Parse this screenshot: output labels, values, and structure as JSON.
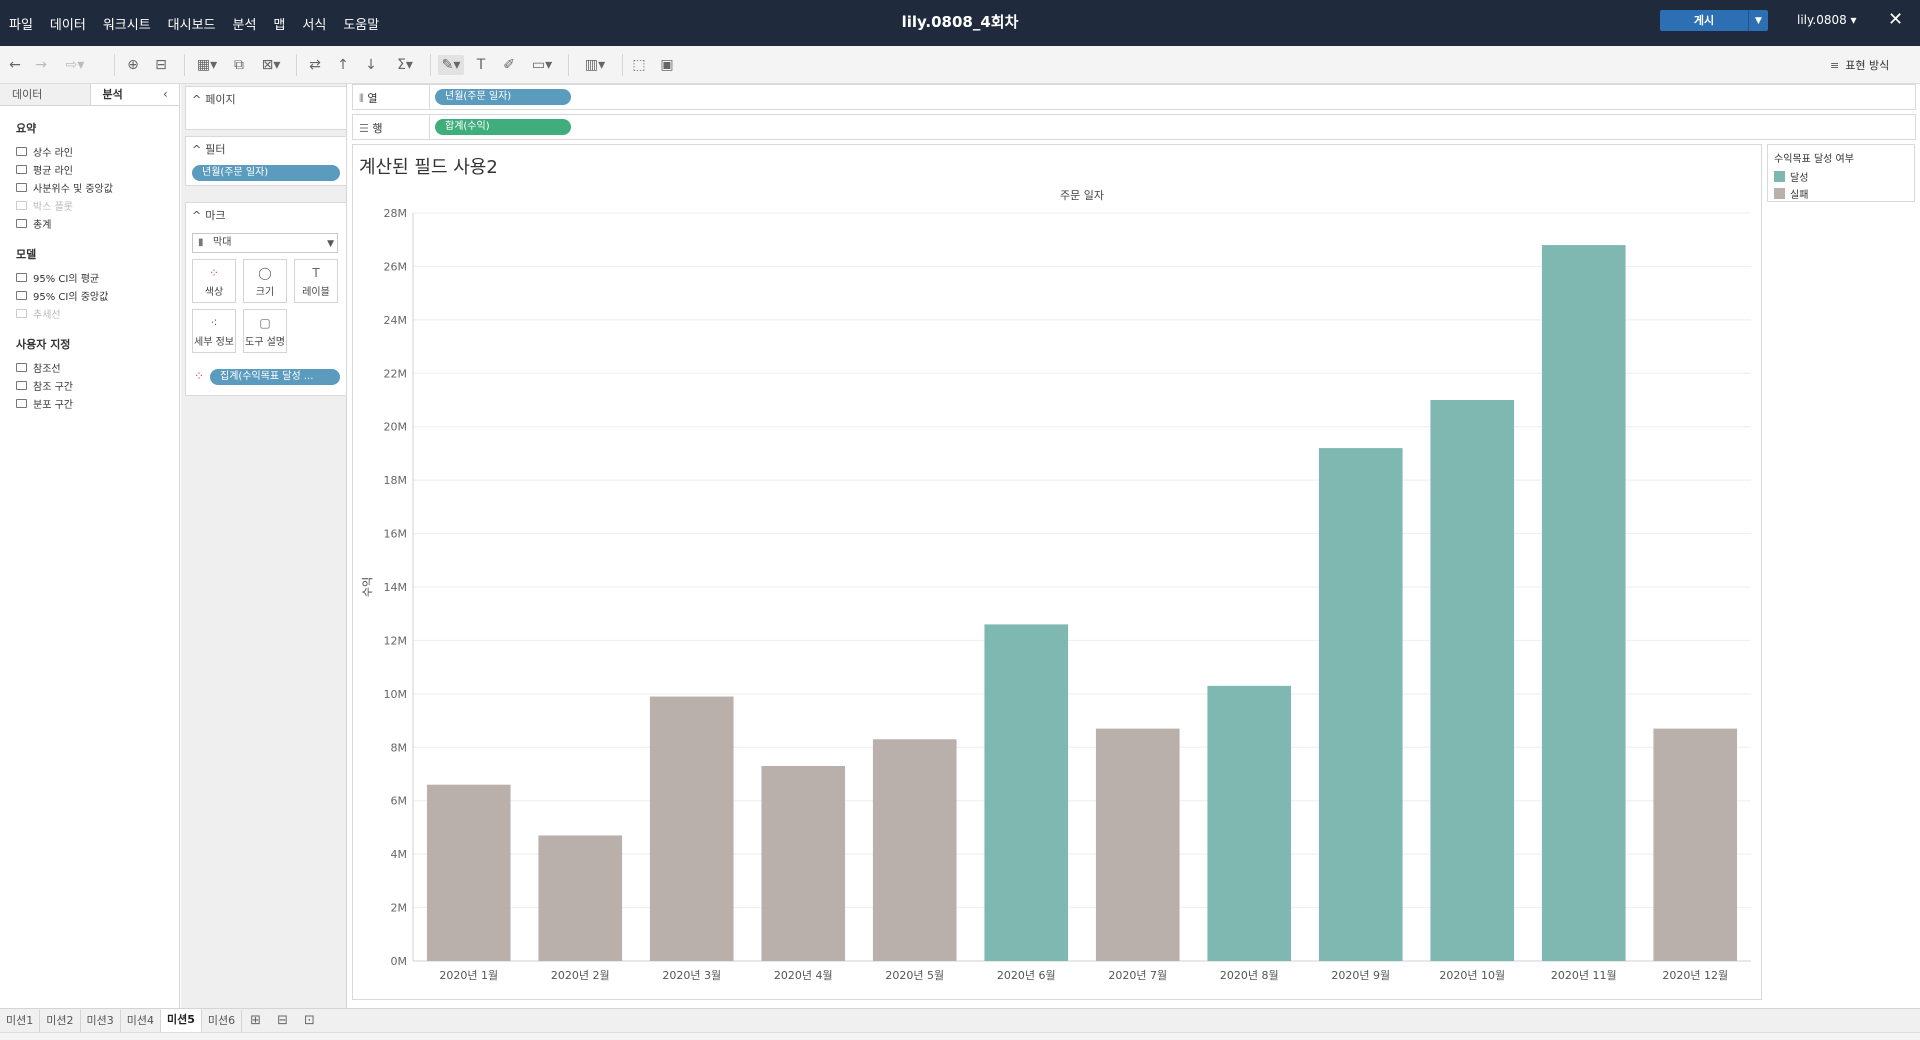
{
  "window": {
    "title": "lily.0808_4회차",
    "publish_label": "게시",
    "user_label": "lily.0808 ▾",
    "close_label": "✕"
  },
  "menu": [
    "파일",
    "데이터",
    "워크시트",
    "대시보드",
    "분석",
    "맵",
    "서식",
    "도움말"
  ],
  "toolbar": {
    "show_me_label": "표현 방식"
  },
  "left_pane": {
    "tabs": [
      "데이터",
      "분석"
    ],
    "sections": [
      {
        "title": "요약",
        "items": [
          {
            "label": "상수 라인",
            "disabled": false
          },
          {
            "label": "평균 라인",
            "disabled": false
          },
          {
            "label": "사분위수 및 중앙값",
            "disabled": false
          },
          {
            "label": "박스 플롯",
            "disabled": true
          },
          {
            "label": "총계",
            "disabled": false
          }
        ]
      },
      {
        "title": "모델",
        "items": [
          {
            "label": "95% CI의 평균",
            "disabled": false
          },
          {
            "label": "95% CI의 중앙값",
            "disabled": false
          },
          {
            "label": "추세선",
            "disabled": true
          }
        ]
      },
      {
        "title": "사용자 지정",
        "items": [
          {
            "label": "참조선",
            "disabled": false
          },
          {
            "label": "참조 구간",
            "disabled": false
          },
          {
            "label": "분포 구간",
            "disabled": false
          }
        ]
      }
    ]
  },
  "cards": {
    "pages_title": "페이지",
    "filters_title": "필터",
    "filter_pill": "년월(주문 일자)",
    "marks_title": "마크",
    "mark_type": "막대",
    "mark_buttons": [
      "색상",
      "크기",
      "레이블",
      "세부 정보",
      "도구 설명"
    ],
    "color_pill": "집계(수익목표 달성 ..."
  },
  "shelves": {
    "columns_label": "열",
    "columns_pill": "년월(주문 일자)",
    "rows_label": "행",
    "rows_pill": "합계(수익)"
  },
  "sheet": {
    "title": "계산된 필드 사용2"
  },
  "legend": {
    "title": "수익목표 달성 여부",
    "items": [
      {
        "label": "달성",
        "color": "#7eb8b1"
      },
      {
        "label": "실패",
        "color": "#b9b0ab"
      }
    ]
  },
  "chart_data": {
    "type": "bar",
    "title": "",
    "xlabel": "주문 일자",
    "ylabel": "수익",
    "categories": [
      "2020년 1월",
      "2020년 2월",
      "2020년 3월",
      "2020년 4월",
      "2020년 5월",
      "2020년 6월",
      "2020년 7월",
      "2020년 8월",
      "2020년 9월",
      "2020년 10월",
      "2020년 11월",
      "2020년 12월"
    ],
    "values": [
      6.6,
      4.7,
      9.9,
      7.3,
      8.3,
      12.6,
      8.7,
      10.3,
      19.2,
      21.0,
      26.8,
      8.7
    ],
    "status": [
      "실패",
      "실패",
      "실패",
      "실패",
      "실패",
      "달성",
      "실패",
      "달성",
      "달성",
      "달성",
      "달성",
      "실패"
    ],
    "ylim": [
      0,
      28
    ],
    "yticks": [
      0,
      2,
      4,
      6,
      8,
      10,
      12,
      14,
      16,
      18,
      20,
      22,
      24,
      26,
      28
    ],
    "ytick_labels": [
      "0M",
      "2M",
      "4M",
      "6M",
      "8M",
      "10M",
      "12M",
      "14M",
      "16M",
      "18M",
      "20M",
      "22M",
      "24M",
      "26M",
      "28M"
    ],
    "unit": "M",
    "grid": true,
    "legend_position": "right"
  },
  "sheet_tabs": [
    "미션1",
    "미션2",
    "미션3",
    "미션4",
    "미션5",
    "미션6"
  ],
  "active_sheet_tab": 4
}
